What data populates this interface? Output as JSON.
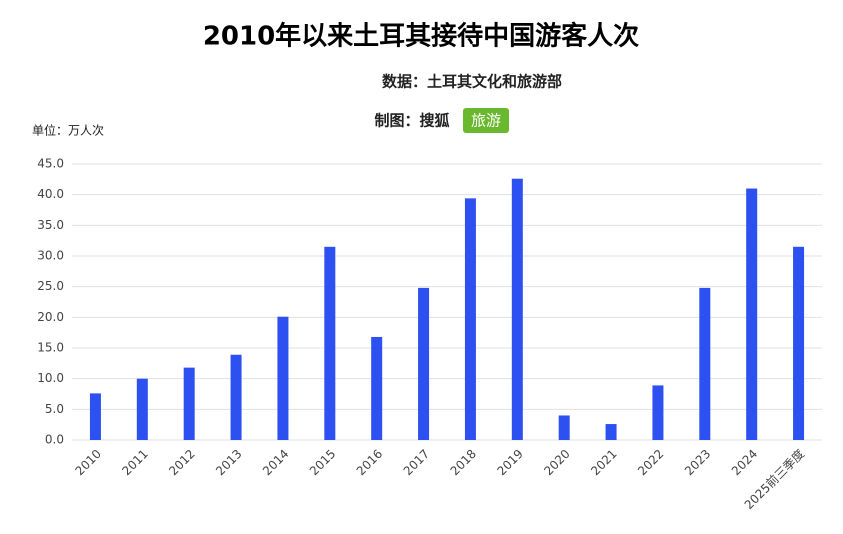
{
  "chart_data": {
    "type": "bar",
    "title": "2010年以来土耳其接待中国游客人次",
    "source": "数据：土耳其文化和旅游部",
    "credit": "制图：搜狐",
    "credit_badge": "旅游",
    "unit": "单位：万人次",
    "categories": [
      "2010",
      "2011",
      "2012",
      "2013",
      "2014",
      "2015",
      "2016",
      "2017",
      "2018",
      "2019",
      "2020",
      "2021",
      "2022",
      "2023",
      "2024",
      "2025前三季度"
    ],
    "values": [
      7.6,
      10.0,
      11.8,
      13.9,
      20.1,
      31.5,
      16.8,
      24.8,
      39.4,
      42.6,
      4.0,
      2.6,
      8.9,
      24.8,
      41.0,
      31.5
    ],
    "color": "#2d50f0",
    "ylim": [
      0,
      45
    ],
    "yticks": [
      {
        "value": 0,
        "label": "0.0"
      },
      {
        "value": 5,
        "label": "5.0"
      },
      {
        "value": 10,
        "label": "10.0"
      },
      {
        "value": 15,
        "label": "15.0"
      },
      {
        "value": 20,
        "label": "20.0"
      },
      {
        "value": 25,
        "label": "25.0"
      },
      {
        "value": 30,
        "label": "30.0"
      },
      {
        "value": 35,
        "label": "35.0"
      },
      {
        "value": 40,
        "label": "40.0"
      },
      {
        "value": 45,
        "label": "45.0"
      }
    ],
    "grid": true
  }
}
